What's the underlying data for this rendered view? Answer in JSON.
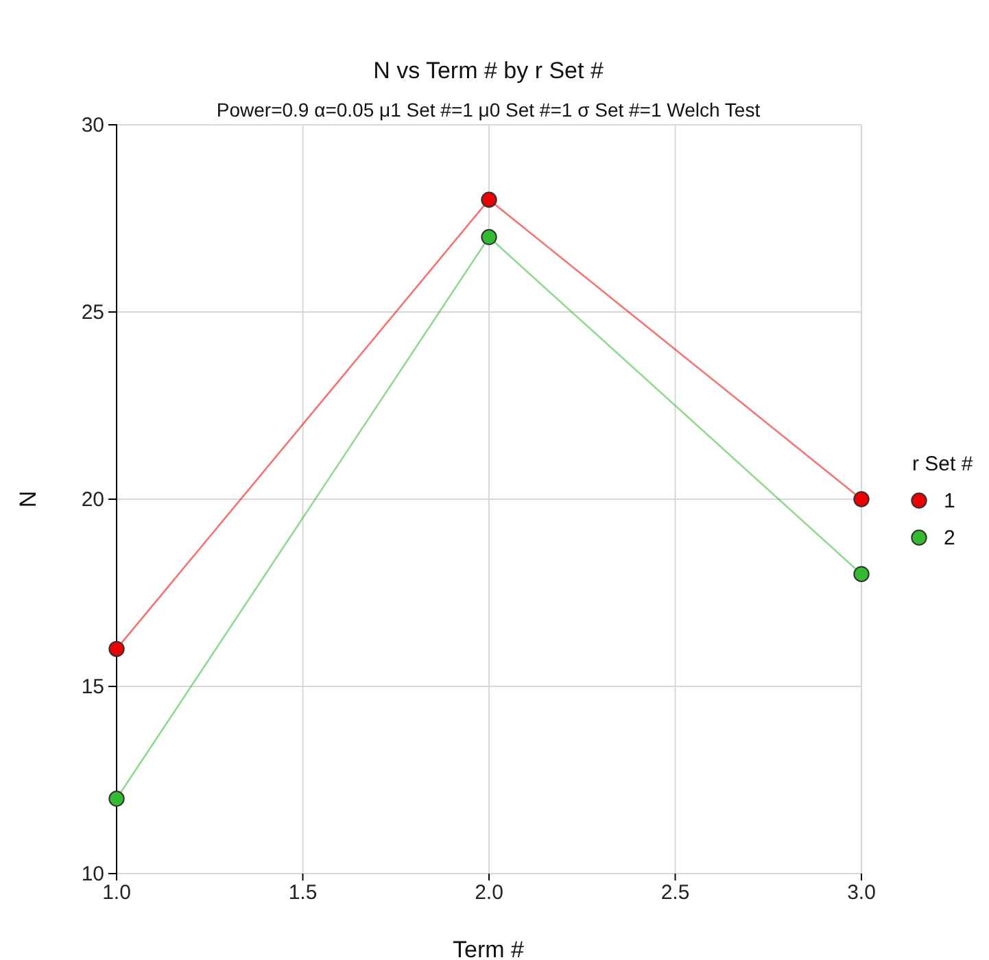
{
  "chart_data": {
    "type": "line",
    "title": "N vs Term # by r Set #",
    "subtitle": "Power=0.9 α=0.05 μ1 Set #=1 μ0 Set #=1 σ Set #=1 Welch Test",
    "xlabel": "Term #",
    "ylabel": "N",
    "legend_title": "r Set #",
    "x": [
      1,
      2,
      3
    ],
    "series": [
      {
        "name": "1",
        "color": "#ee0000",
        "values": [
          16,
          28,
          20
        ]
      },
      {
        "name": "2",
        "color": "#33bb33",
        "values": [
          12,
          27,
          18
        ]
      }
    ],
    "xlim": [
      1,
      3
    ],
    "xticks": [
      {
        "value": 1,
        "label": "1.0"
      },
      {
        "value": 1.5,
        "label": "1.5"
      },
      {
        "value": 2,
        "label": "2.0"
      },
      {
        "value": 2.5,
        "label": "2.5"
      },
      {
        "value": 3,
        "label": "3.0"
      }
    ],
    "ylim": [
      10,
      30
    ],
    "yticks": [
      10,
      15,
      20,
      25,
      30
    ],
    "grid": true,
    "legend": "right",
    "marker": "circle",
    "line_style": "solid"
  }
}
